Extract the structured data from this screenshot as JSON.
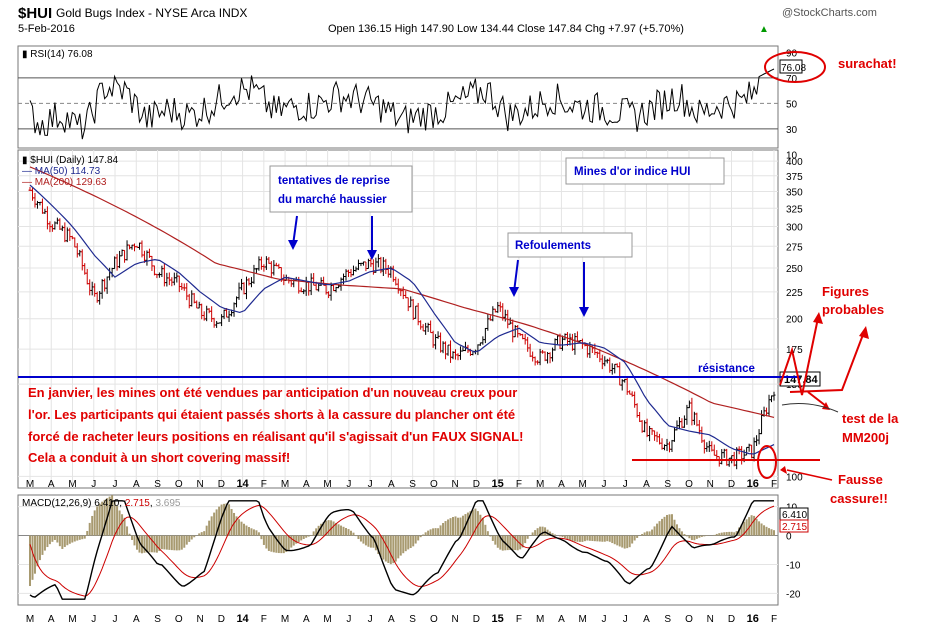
{
  "header": {
    "symbol": "$HUI",
    "name": "Gold Bugs Index - NYSE Arca INDX",
    "source": "@StockCharts.com",
    "date": "5-Feb-2016",
    "quote": "Open 136.15  High 147.90  Low 134.44  Close 147.84  Chg +7.97 (+5.70%)",
    "quote_arrow": "▲"
  },
  "colors": {
    "price": "#000000",
    "ma50": "#1f2a90",
    "ma200": "#b02020",
    "annotation_red": "#e00000",
    "annotation_blue": "#0000cc",
    "grid": "#e4e4e4",
    "background": "#ffffff"
  },
  "annotations": {
    "surachat": "surachat!",
    "tentatives_line1": "tentatives de reprise",
    "tentatives_line2": "du marché haussier",
    "mines": "Mines d'or indice HUI",
    "refoulements": "Refoulements",
    "figures_line1": "Figures",
    "figures_line2": "probables",
    "resistance": "résistance",
    "test_line1": "test de la",
    "test_line2": "MM200j",
    "fausse_line1": "Fausse",
    "fausse_line2": "cassure!!",
    "comment_lines": [
      "En janvier, les mines ont été vendues par anticipation d'un nouveau creux pour",
      "l'or. Les participants qui étaient passés shorts à la cassure du plancher ont été",
      "forcé de racheter leurs positions en réalisant qu'il s'agissait d'un FAUX SIGNAL!",
      "Cela a conduit à un short covering massif!"
    ]
  },
  "chart_data": [
    {
      "type": "line",
      "panel": "RSI",
      "legend": "RSI(14) 76.08",
      "ylim": [
        15,
        95
      ],
      "y_ticks": [
        90,
        70,
        50,
        30,
        10
      ],
      "last_value": "76.08",
      "reference_lines": [
        70,
        50,
        30
      ]
    },
    {
      "type": "line",
      "panel": "price",
      "legend": [
        {
          "symbol": "▮",
          "name": "$HUI (Daily)",
          "value": "147.84",
          "color": "#000000"
        },
        {
          "symbol": "—",
          "name": "MA(50)",
          "value": "114.73",
          "color": "#1f2a90"
        },
        {
          "symbol": "—",
          "name": "MA(200)",
          "value": "129.63",
          "color": "#b02020"
        }
      ],
      "scale": "log",
      "ylim": [
        95,
        420
      ],
      "y_ticks": [
        400,
        375,
        350,
        325,
        300,
        275,
        250,
        225,
        200,
        175,
        150,
        100
      ],
      "last_value": "147.84",
      "resistance_level": 147,
      "support_level": 103,
      "x_ticks": [
        "M",
        "A",
        "M",
        "J",
        "J",
        "A",
        "S",
        "O",
        "N",
        "D",
        "14",
        "F",
        "M",
        "A",
        "M",
        "J",
        "J",
        "A",
        "S",
        "O",
        "N",
        "D",
        "15",
        "F",
        "M",
        "A",
        "M",
        "J",
        "J",
        "A",
        "S",
        "O",
        "N",
        "D",
        "16",
        "F"
      ],
      "series": [
        {
          "name": "$HUI (Daily)",
          "x": [
            "2013-03",
            "2013-04",
            "2013-05",
            "2013-06",
            "2013-07",
            "2013-08",
            "2013-09",
            "2013-10",
            "2013-11",
            "2013-12",
            "2014-01",
            "2014-02",
            "2014-03",
            "2014-04",
            "2014-05",
            "2014-06",
            "2014-07",
            "2014-08",
            "2014-09",
            "2014-10",
            "2014-11",
            "2014-12",
            "2015-01",
            "2015-02",
            "2015-03",
            "2015-04",
            "2015-05",
            "2015-06",
            "2015-07",
            "2015-08",
            "2015-09",
            "2015-10",
            "2015-11",
            "2015-12",
            "2016-01",
            "2016-02"
          ],
          "values": [
            352,
            305,
            282,
            218,
            255,
            282,
            245,
            232,
            205,
            198,
            228,
            258,
            238,
            232,
            228,
            246,
            255,
            248,
            208,
            182,
            168,
            178,
            210,
            182,
            168,
            182,
            178,
            168,
            150,
            120,
            115,
            135,
            110,
            108,
            112,
            148
          ]
        },
        {
          "name": "MA(50)",
          "x": [
            "2013-03",
            "2013-04",
            "2013-05",
            "2013-06",
            "2013-07",
            "2013-08",
            "2013-09",
            "2013-10",
            "2013-11",
            "2013-12",
            "2014-01",
            "2014-02",
            "2014-03",
            "2014-04",
            "2014-05",
            "2014-06",
            "2014-07",
            "2014-08",
            "2014-09",
            "2014-10",
            "2014-11",
            "2014-12",
            "2015-01",
            "2015-02",
            "2015-03",
            "2015-04",
            "2015-05",
            "2015-06",
            "2015-07",
            "2015-08",
            "2015-09",
            "2015-10",
            "2015-11",
            "2015-12",
            "2016-01",
            "2016-02"
          ],
          "values": [
            360,
            330,
            300,
            265,
            240,
            255,
            260,
            245,
            225,
            210,
            205,
            228,
            240,
            236,
            232,
            236,
            246,
            250,
            235,
            205,
            180,
            172,
            185,
            192,
            180,
            178,
            180,
            176,
            165,
            140,
            125,
            122,
            120,
            113,
            110,
            115
          ]
        },
        {
          "name": "MA(200)",
          "x": [
            "2013-03",
            "2013-06",
            "2013-09",
            "2013-12",
            "2014-03",
            "2014-06",
            "2014-09",
            "2014-12",
            "2015-03",
            "2015-06",
            "2015-09",
            "2015-12",
            "2016-02"
          ],
          "values": [
            390,
            345,
            300,
            255,
            238,
            232,
            228,
            210,
            195,
            178,
            158,
            138,
            129.6
          ]
        }
      ]
    },
    {
      "type": "line",
      "panel": "MACD",
      "legend": [
        {
          "name": "MACD(12,26,9)",
          "value": "6.410",
          "color": "#000000"
        },
        {
          "name": "",
          "value": "2.715",
          "color": "#cc0000"
        },
        {
          "name": "",
          "value": "3.695",
          "color": "#999999"
        }
      ],
      "ylim": [
        -24,
        14
      ],
      "y_ticks": [
        10,
        0,
        -10,
        -20
      ],
      "last_values": [
        "6.410",
        "2.715"
      ],
      "x_ticks": [
        "M",
        "A",
        "M",
        "J",
        "J",
        "A",
        "S",
        "O",
        "N",
        "D",
        "14",
        "F",
        "M",
        "A",
        "M",
        "J",
        "J",
        "A",
        "S",
        "O",
        "N",
        "D",
        "15",
        "F",
        "M",
        "A",
        "M",
        "J",
        "J",
        "A",
        "S",
        "O",
        "N",
        "D",
        "16",
        "F"
      ]
    }
  ]
}
